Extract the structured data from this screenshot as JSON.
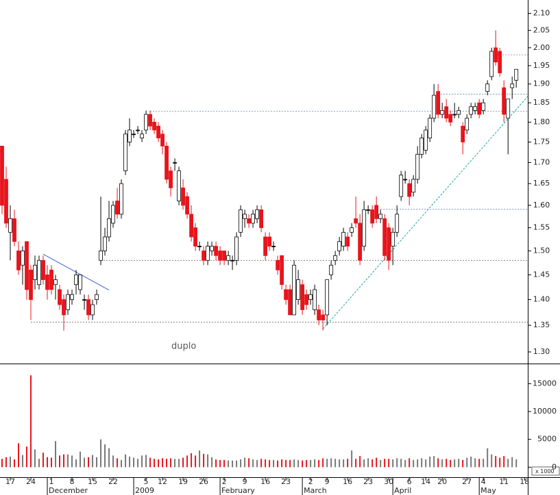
{
  "chart_data": {
    "type": "candlestick",
    "log_scale": true,
    "colors": {
      "up": "#ffffff",
      "down": "#e8141c",
      "neutral": "#000000",
      "outline": "#000000",
      "volume_up": "#777777",
      "volume_down": "#e8141c"
    },
    "xlim": [
      -0.5,
      127.8
    ],
    "xticks": [
      {
        "value": 2,
        "label": "17"
      },
      {
        "value": 7,
        "label": "24"
      },
      {
        "value": 12,
        "label": "1"
      },
      {
        "value": 17,
        "label": "8"
      },
      {
        "value": 22,
        "label": "15"
      },
      {
        "value": 27,
        "label": "22"
      },
      {
        "value": 35,
        "label": "5"
      },
      {
        "value": 39,
        "label": "12"
      },
      {
        "value": 44,
        "label": "19"
      },
      {
        "value": 49,
        "label": "26"
      },
      {
        "value": 54,
        "label": "2"
      },
      {
        "value": 59,
        "label": "9"
      },
      {
        "value": 64,
        "label": "16"
      },
      {
        "value": 69,
        "label": "23"
      },
      {
        "value": 75,
        "label": "2"
      },
      {
        "value": 79,
        "label": "9"
      },
      {
        "value": 84,
        "label": "16"
      },
      {
        "value": 89,
        "label": "23"
      },
      {
        "value": 94,
        "label": "30"
      },
      {
        "value": 99,
        "label": "6"
      },
      {
        "value": 103,
        "label": "14"
      },
      {
        "value": 107,
        "label": "20"
      },
      {
        "value": 113,
        "label": "27"
      },
      {
        "value": 117,
        "label": "4"
      },
      {
        "value": 122,
        "label": "11"
      },
      {
        "value": 127,
        "label": "18"
      }
    ],
    "month_ticks": [
      {
        "value": 11,
        "label": "December"
      },
      {
        "value": 32,
        "label": "2009"
      },
      {
        "value": 53,
        "label": "February"
      },
      {
        "value": 73,
        "label": "March"
      },
      {
        "value": 95,
        "label": "April"
      },
      {
        "value": 116,
        "label": "May"
      }
    ],
    "ylim": [
      1.28,
      2.14
    ],
    "yticks": [
      {
        "value": 1.3,
        "label": "1.30"
      },
      {
        "value": 1.35,
        "label": "1.35"
      },
      {
        "value": 1.4,
        "label": "1.40"
      },
      {
        "value": 1.45,
        "label": "1.45"
      },
      {
        "value": 1.5,
        "label": "1.50"
      },
      {
        "value": 1.55,
        "label": "1.55"
      },
      {
        "value": 1.6,
        "label": "1.60"
      },
      {
        "value": 1.65,
        "label": "1.65"
      },
      {
        "value": 1.7,
        "label": "1.70"
      },
      {
        "value": 1.75,
        "label": "1.75"
      },
      {
        "value": 1.8,
        "label": "1.80"
      },
      {
        "value": 1.85,
        "label": "1.85"
      },
      {
        "value": 1.9,
        "label": "1.90"
      },
      {
        "value": 1.95,
        "label": "1.95"
      },
      {
        "value": 2.0,
        "label": "2.00"
      },
      {
        "value": 2.05,
        "label": "2.05"
      },
      {
        "value": 2.1,
        "label": "2.10"
      }
    ],
    "open": [
      1.74,
      1.66,
      1.54,
      1.57,
      1.5,
      1.47,
      1.52,
      1.46,
      1.44,
      1.43,
      1.48,
      1.45,
      1.46,
      1.43,
      1.42,
      1.4,
      1.38,
      1.4,
      1.43,
      1.42,
      1.4,
      1.4,
      1.37,
      1.4,
      1.48,
      1.5,
      1.53,
      1.56,
      1.61,
      1.58,
      1.68,
      1.75,
      1.77,
      1.78,
      1.76,
      1.78,
      1.82,
      1.8,
      1.79,
      1.77,
      1.74,
      1.68,
      1.7,
      1.61,
      1.64,
      1.62,
      1.58,
      1.55,
      1.51,
      1.5,
      1.48,
      1.5,
      1.51,
      1.5,
      1.5,
      1.48,
      1.48,
      1.48,
      1.54,
      1.57,
      1.57,
      1.56,
      1.57,
      1.59,
      1.53,
      1.53,
      1.51,
      1.48,
      1.49,
      1.42,
      1.42,
      1.37,
      1.4,
      1.43,
      1.41,
      1.4,
      1.38,
      1.38,
      1.37,
      1.37,
      1.45,
      1.48,
      1.5,
      1.51,
      1.53,
      1.54,
      1.57,
      1.56,
      1.51,
      1.59,
      1.59,
      1.6,
      1.57,
      1.57,
      1.55,
      1.51,
      1.54,
      1.62,
      1.66,
      1.65,
      1.63,
      1.66,
      1.72,
      1.73,
      1.76,
      1.81,
      1.88,
      1.82,
      1.84,
      1.82,
      1.82,
      1.82,
      1.79,
      1.78,
      1.82,
      1.83,
      1.85,
      1.83,
      1.88,
      1.92,
      2.0,
      1.99,
      1.89,
      1.81,
      1.89,
      1.91
    ],
    "high": [
      1.74,
      1.69,
      1.6,
      1.59,
      1.52,
      1.51,
      1.52,
      1.47,
      1.49,
      1.49,
      1.49,
      1.47,
      1.47,
      1.45,
      1.43,
      1.41,
      1.42,
      1.42,
      1.46,
      1.45,
      1.41,
      1.41,
      1.4,
      1.42,
      1.62,
      1.55,
      1.61,
      1.61,
      1.64,
      1.66,
      1.78,
      1.81,
      1.78,
      1.79,
      1.78,
      1.83,
      1.83,
      1.81,
      1.8,
      1.78,
      1.75,
      1.69,
      1.71,
      1.69,
      1.66,
      1.63,
      1.6,
      1.56,
      1.52,
      1.51,
      1.52,
      1.52,
      1.52,
      1.51,
      1.5,
      1.5,
      1.49,
      1.54,
      1.6,
      1.59,
      1.58,
      1.59,
      1.6,
      1.6,
      1.54,
      1.54,
      1.52,
      1.49,
      1.49,
      1.43,
      1.43,
      1.48,
      1.46,
      1.44,
      1.42,
      1.42,
      1.43,
      1.39,
      1.38,
      1.44,
      1.48,
      1.5,
      1.53,
      1.55,
      1.54,
      1.56,
      1.62,
      1.58,
      1.61,
      1.6,
      1.6,
      1.62,
      1.59,
      1.58,
      1.56,
      1.55,
      1.6,
      1.68,
      1.68,
      1.66,
      1.67,
      1.74,
      1.77,
      1.79,
      1.82,
      1.9,
      1.9,
      1.85,
      1.86,
      1.83,
      1.85,
      1.84,
      1.8,
      1.82,
      1.85,
      1.85,
      1.86,
      1.86,
      1.91,
      2.0,
      2.05,
      2.0,
      1.91,
      1.86,
      1.92,
      1.94
    ],
    "low": [
      1.58,
      1.55,
      1.48,
      1.51,
      1.45,
      1.43,
      1.4,
      1.36,
      1.42,
      1.42,
      1.43,
      1.4,
      1.41,
      1.4,
      1.38,
      1.34,
      1.37,
      1.39,
      1.41,
      1.41,
      1.38,
      1.36,
      1.36,
      1.39,
      1.47,
      1.49,
      1.52,
      1.55,
      1.57,
      1.57,
      1.67,
      1.74,
      1.76,
      1.77,
      1.75,
      1.77,
      1.78,
      1.77,
      1.75,
      1.72,
      1.65,
      1.62,
      1.68,
      1.6,
      1.59,
      1.57,
      1.52,
      1.5,
      1.5,
      1.47,
      1.47,
      1.49,
      1.48,
      1.47,
      1.47,
      1.47,
      1.46,
      1.47,
      1.53,
      1.55,
      1.55,
      1.55,
      1.56,
      1.54,
      1.48,
      1.5,
      1.5,
      1.45,
      1.42,
      1.39,
      1.37,
      1.37,
      1.39,
      1.37,
      1.38,
      1.39,
      1.37,
      1.35,
      1.34,
      1.35,
      1.44,
      1.47,
      1.49,
      1.5,
      1.5,
      1.53,
      1.55,
      1.47,
      1.5,
      1.58,
      1.55,
      1.56,
      1.56,
      1.48,
      1.46,
      1.47,
      1.53,
      1.61,
      1.65,
      1.6,
      1.62,
      1.65,
      1.71,
      1.72,
      1.75,
      1.8,
      1.81,
      1.81,
      1.8,
      1.79,
      1.81,
      1.81,
      1.72,
      1.77,
      1.81,
      1.82,
      1.81,
      1.82,
      1.87,
      1.91,
      1.95,
      1.92,
      1.8,
      1.72,
      1.86,
      1.89
    ],
    "close": [
      1.6,
      1.56,
      1.57,
      1.52,
      1.46,
      1.5,
      1.42,
      1.4,
      1.47,
      1.48,
      1.44,
      1.42,
      1.42,
      1.44,
      1.39,
      1.37,
      1.41,
      1.41,
      1.45,
      1.45,
      1.4,
      1.37,
      1.39,
      1.41,
      1.5,
      1.53,
      1.57,
      1.6,
      1.58,
      1.65,
      1.77,
      1.78,
      1.77,
      1.78,
      1.77,
      1.82,
      1.79,
      1.78,
      1.76,
      1.74,
      1.66,
      1.64,
      1.7,
      1.68,
      1.6,
      1.58,
      1.53,
      1.51,
      1.51,
      1.48,
      1.51,
      1.51,
      1.49,
      1.48,
      1.48,
      1.49,
      1.48,
      1.53,
      1.59,
      1.58,
      1.56,
      1.58,
      1.59,
      1.55,
      1.49,
      1.51,
      1.51,
      1.46,
      1.43,
      1.4,
      1.37,
      1.47,
      1.44,
      1.38,
      1.39,
      1.41,
      1.42,
      1.36,
      1.36,
      1.44,
      1.47,
      1.49,
      1.52,
      1.54,
      1.51,
      1.55,
      1.56,
      1.48,
      1.59,
      1.59,
      1.56,
      1.57,
      1.58,
      1.49,
      1.48,
      1.54,
      1.58,
      1.67,
      1.66,
      1.62,
      1.66,
      1.72,
      1.76,
      1.78,
      1.81,
      1.87,
      1.82,
      1.83,
      1.81,
      1.8,
      1.82,
      1.83,
      1.75,
      1.81,
      1.84,
      1.84,
      1.82,
      1.85,
      1.9,
      1.99,
      1.96,
      1.93,
      1.82,
      1.86,
      1.9,
      1.94
    ],
    "volume": [
      1500,
      1800,
      1900,
      1400,
      4300,
      2200,
      3700,
      16500,
      3200,
      1500,
      2600,
      1800,
      1700,
      4700,
      2100,
      2300,
      2300,
      2100,
      1400,
      2800,
      1700,
      1800,
      2200,
      1800,
      5000,
      4100,
      3400,
      2100,
      1600,
      1300,
      2300,
      1900,
      1700,
      1500,
      2100,
      2200,
      1700,
      1500,
      1400,
      1600,
      1500,
      1600,
      1500,
      1500,
      1700,
      2100,
      2500,
      2100,
      3000,
      2400,
      2300,
      1800,
      1400,
      1300,
      1300,
      1200,
      1200,
      1200,
      1400,
      1700,
      1600,
      1400,
      1300,
      1500,
      1400,
      1300,
      1300,
      1200,
      1400,
      1300,
      1300,
      1400,
      1300,
      1200,
      1300,
      1300,
      1400,
      1300,
      1600,
      1500,
      1600,
      1500,
      1400,
      1400,
      1500,
      3000,
      1500,
      2000,
      1400,
      1600,
      1400,
      1700,
      1300,
      1500,
      1500,
      1400,
      1600,
      1500,
      1300,
      1600,
      1300,
      1400,
      1600,
      1400,
      1900,
      2000,
      1600,
      1400,
      1500,
      1300,
      1400,
      1500,
      1300,
      1700,
      1900,
      1600,
      1500,
      1500,
      3400,
      2300,
      2000,
      1700,
      2000,
      1500,
      1800,
      1400
    ],
    "volume_ylim": [
      -1800,
      18500
    ],
    "volume_yticks": [
      0,
      5000,
      10000,
      15000
    ],
    "volume_unit_label": "x 1000",
    "reference_lines": [
      {
        "value": 1.356,
        "from": 7,
        "color": "#555555"
      },
      {
        "value": 1.48,
        "from": 24,
        "color": "#555555"
      },
      {
        "value": 1.828,
        "from": 36,
        "color": "#6a7fb0"
      },
      {
        "value": 1.591,
        "from": 92,
        "color": "#6a7fb0"
      },
      {
        "value": 1.873,
        "from": 106,
        "color": "#6a7fb0"
      },
      {
        "value": 1.98,
        "from": 119,
        "color": "#6a7fb0"
      }
    ],
    "trendlines": [
      {
        "x": [
          10,
          26
        ],
        "y": [
          1.493,
          1.419
        ],
        "color": "#3c5ed6",
        "dashed": false
      },
      {
        "x": [
          78,
          127.8
        ],
        "y": [
          1.343,
          1.867
        ],
        "color": "#1aa8a0",
        "dashed": true
      }
    ],
    "annotation": "duplo"
  }
}
